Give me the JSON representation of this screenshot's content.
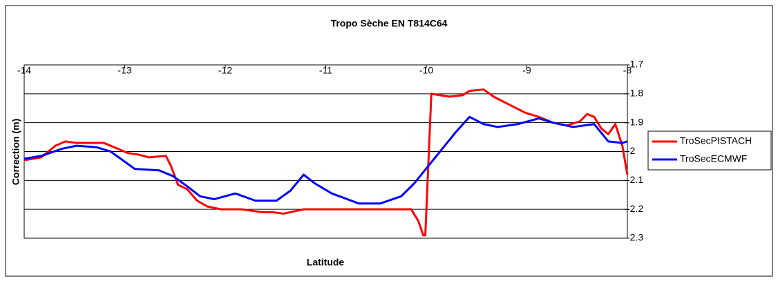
{
  "chart_data": {
    "type": "line",
    "title": "Tropo Sèche EN T814C64",
    "x_label": "Latitude",
    "y_label": "Correction (m)",
    "xlim": [
      -14,
      -8
    ],
    "xticks": [
      -14,
      -13,
      -12,
      -11,
      -10,
      -9,
      -8
    ],
    "ylim": [
      -2.3,
      -1.7
    ],
    "yticks": [
      -1.7,
      -1.8,
      -1.9,
      -2,
      -2.1,
      -2.2,
      -2.3
    ],
    "grid": true,
    "legend": "right",
    "series": [
      {
        "name": "TroSecPISTACH",
        "color": "#ff0000",
        "x": [
          -14,
          -13.83,
          -13.69,
          -13.59,
          -13.48,
          -13.35,
          -13.21,
          -13.07,
          -12.97,
          -12.87,
          -12.76,
          -12.59,
          -12.54,
          -12.47,
          -12.38,
          -12.28,
          -12.18,
          -12.04,
          -11.84,
          -11.63,
          -11.53,
          -11.42,
          -11.22,
          -11.01,
          -10.67,
          -10.32,
          -10.15,
          -10.08,
          -10.03,
          -10.01,
          -9.95,
          -9.77,
          -9.64,
          -9.57,
          -9.43,
          -9.33,
          -9.19,
          -9.02,
          -8.88,
          -8.74,
          -8.6,
          -8.47,
          -8.4,
          -8.33,
          -8.26,
          -8.19,
          -8.12,
          -8.05,
          -8.0
        ],
        "values": [
          -2.03,
          -2.02,
          -1.98,
          -1.965,
          -1.97,
          -1.97,
          -1.97,
          -1.99,
          -2.005,
          -2.01,
          -2.02,
          -2.015,
          -2.05,
          -2.115,
          -2.13,
          -2.17,
          -2.19,
          -2.2,
          -2.2,
          -2.21,
          -2.21,
          -2.215,
          -2.2,
          -2.2,
          -2.2,
          -2.2,
          -2.2,
          -2.24,
          -2.29,
          -2.29,
          -1.8,
          -1.81,
          -1.805,
          -1.79,
          -1.785,
          -1.81,
          -1.835,
          -1.865,
          -1.88,
          -1.9,
          -1.91,
          -1.895,
          -1.87,
          -1.88,
          -1.92,
          -1.94,
          -1.905,
          -1.98,
          -2.08
        ]
      },
      {
        "name": "TroSecECMWF",
        "color": "#0000ff",
        "x": [
          -14,
          -13.83,
          -13.62,
          -13.48,
          -13.28,
          -13.14,
          -13.0,
          -12.9,
          -12.66,
          -12.52,
          -12.38,
          -12.25,
          -12.11,
          -11.9,
          -11.7,
          -11.49,
          -11.35,
          -11.22,
          -11.11,
          -10.94,
          -10.67,
          -10.46,
          -10.25,
          -10.12,
          -9.98,
          -9.84,
          -9.7,
          -9.57,
          -9.43,
          -9.29,
          -9.09,
          -8.88,
          -8.74,
          -8.54,
          -8.33,
          -8.19,
          -8.05,
          -8.0
        ],
        "values": [
          -2.025,
          -2.015,
          -1.99,
          -1.98,
          -1.985,
          -2.0,
          -2.035,
          -2.06,
          -2.065,
          -2.085,
          -2.12,
          -2.155,
          -2.165,
          -2.145,
          -2.17,
          -2.17,
          -2.135,
          -2.08,
          -2.11,
          -2.145,
          -2.18,
          -2.18,
          -2.155,
          -2.11,
          -2.05,
          -1.99,
          -1.93,
          -1.88,
          -1.905,
          -1.915,
          -1.905,
          -1.885,
          -1.9,
          -1.915,
          -1.905,
          -1.965,
          -1.97,
          -1.965
        ]
      }
    ]
  }
}
